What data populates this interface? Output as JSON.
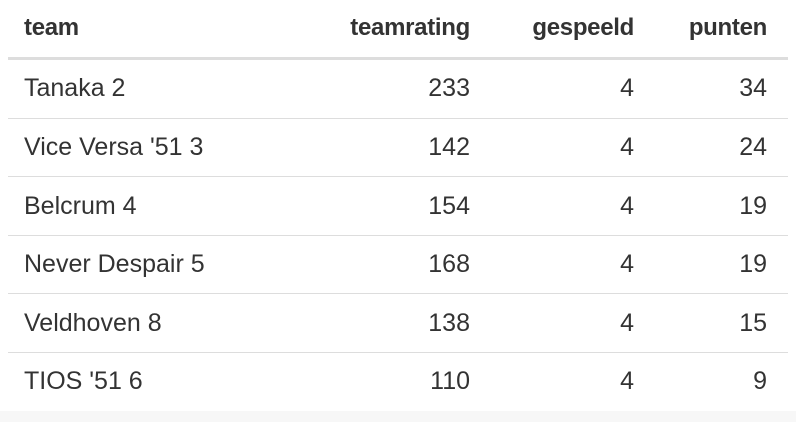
{
  "table": {
    "header": [
      "team",
      "teamrating",
      "gespeeld",
      "punten"
    ],
    "rows": [
      [
        "Tanaka 2",
        233,
        4,
        34
      ],
      [
        "Vice Versa '51 3",
        142,
        4,
        24
      ],
      [
        "Belcrum 4",
        154,
        4,
        19
      ],
      [
        "Never Despair 5",
        168,
        4,
        19
      ],
      [
        "Veldhoven 8",
        138,
        4,
        15
      ],
      [
        "TIOS '51 6",
        110,
        4,
        9
      ]
    ]
  }
}
